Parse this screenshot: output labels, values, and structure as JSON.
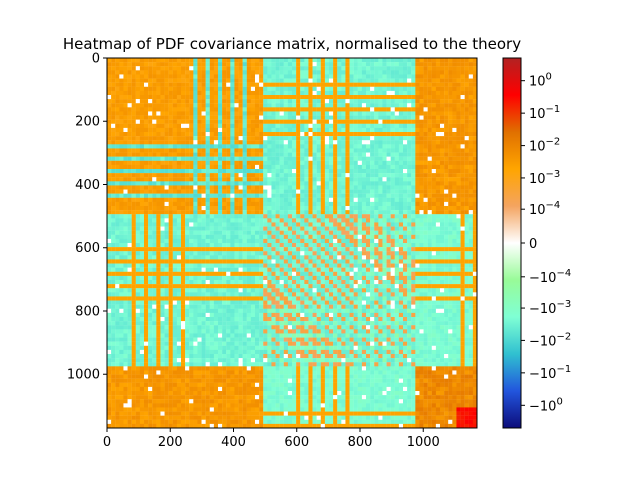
{
  "chart_data": {
    "type": "heatmap",
    "title": "Heatmap of PDF covariance matrix, normalised to the theory",
    "xlabel": "",
    "ylabel": "",
    "matrix_size": 1170,
    "xlim": [
      0,
      1170
    ],
    "ylim": [
      1170,
      0
    ],
    "x_ticks": [
      0,
      200,
      400,
      600,
      800,
      1000
    ],
    "x_tick_labels": [
      "0",
      "200",
      "400",
      "600",
      "800",
      "1000"
    ],
    "y_ticks": [
      0,
      200,
      400,
      600,
      800,
      1000
    ],
    "y_tick_labels": [
      "0",
      "200",
      "400",
      "600",
      "800",
      "1000"
    ],
    "block_boundaries": [
      0,
      490,
      970,
      1170
    ],
    "color_scale": "symlog",
    "colorbar": {
      "vmin": -5,
      "vmax": 5,
      "linthresh": 1e-05,
      "ticks": [
        {
          "value": 1,
          "label": "10^0"
        },
        {
          "value": 0.1,
          "label": "10^-1"
        },
        {
          "value": 0.01,
          "label": "10^-2"
        },
        {
          "value": 0.001,
          "label": "10^-3"
        },
        {
          "value": 0.0001,
          "label": "10^-4"
        },
        {
          "value": 0,
          "label": "0"
        },
        {
          "value": -0.0001,
          "label": "-10^-4"
        },
        {
          "value": -0.001,
          "label": "-10^-3"
        },
        {
          "value": -0.01,
          "label": "-10^-2"
        },
        {
          "value": -0.1,
          "label": "-10^-1"
        },
        {
          "value": -1,
          "label": "-10^0"
        }
      ],
      "colors": [
        "#0c0c7a",
        "#2255dd",
        "#30c0d0",
        "#7fffd4",
        "#98fb98",
        "#ffffff",
        "#f4a460",
        "#ffa500",
        "#e07000",
        "#ff0000",
        "#b22222"
      ]
    },
    "typical_values": {
      "block_A_diag": 0.002,
      "block_B_diag": 0.0002,
      "block_C_diag": 0.005,
      "block_C_strong": 0.3,
      "off_diag_AB": -0.003,
      "off_diag_BC": -0.002,
      "off_diag_AC": 0.003
    }
  }
}
